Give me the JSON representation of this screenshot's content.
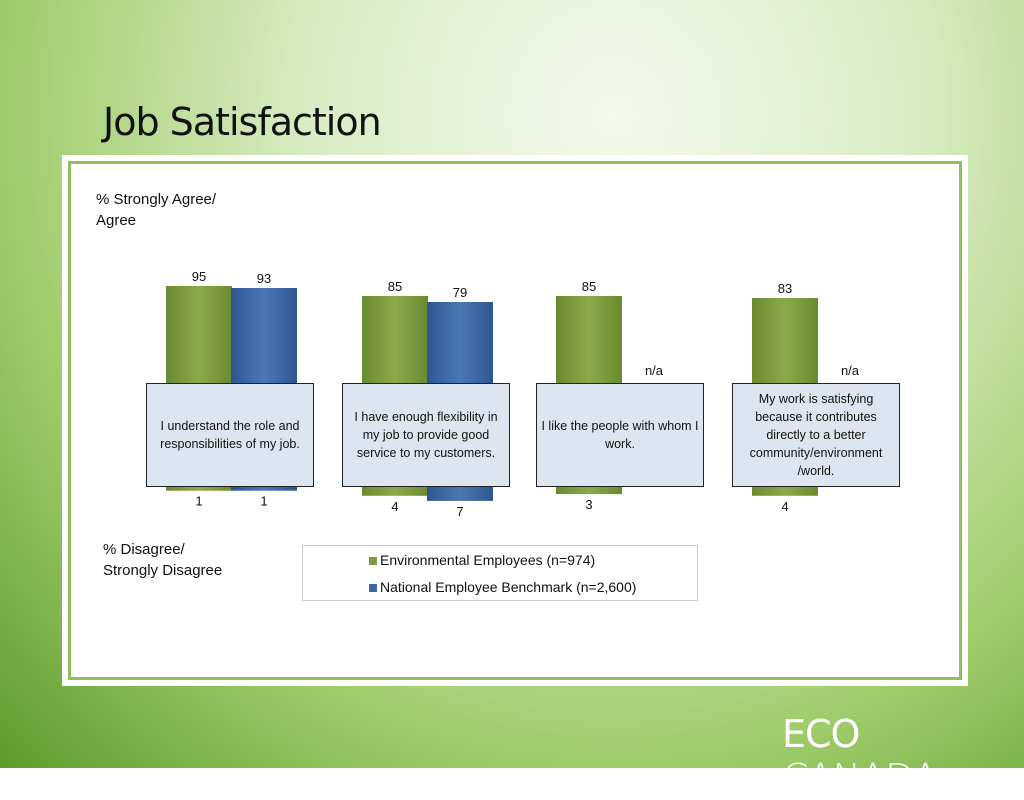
{
  "chart_data": {
    "type": "bar",
    "title": "Job Satisfaction",
    "agree_label": "% Strongly Agree/ Agree",
    "disagree_label": "% Disagree/ Strongly Disagree",
    "categories": [
      "I understand the role and responsibilities of my job.",
      "I have enough flexibility in my job to provide good service to my customers.",
      "I like the people with whom I work.",
      "My work is satisfying because it contributes directly to a better community/environment /world."
    ],
    "series": [
      {
        "name": "Environmental Employees (n=974)",
        "color": "#7c9b3e",
        "values": [
          95,
          85,
          85,
          83
        ],
        "disagree_values": [
          1,
          4,
          3,
          4
        ]
      },
      {
        "name": "National Employee Benchmark (n=2,600)",
        "color": "#3c68a3",
        "values": [
          93,
          79,
          null,
          null
        ],
        "value_labels": [
          "93",
          "79",
          "n/a",
          "n/a"
        ],
        "disagree_values": [
          1,
          7,
          null,
          null
        ]
      }
    ],
    "logo": {
      "eco": "ECO",
      "canada": "CANADA"
    }
  }
}
